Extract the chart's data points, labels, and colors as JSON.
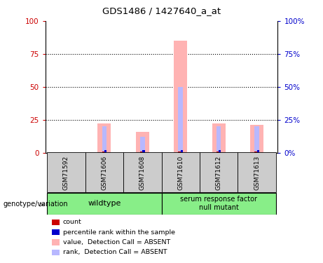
{
  "title": "GDS1486 / 1427640_a_at",
  "samples": [
    "GSM71592",
    "GSM71606",
    "GSM71608",
    "GSM71610",
    "GSM71612",
    "GSM71613"
  ],
  "value_absent": [
    0,
    22,
    16,
    85,
    22,
    21
  ],
  "rank_absent": [
    0,
    20,
    12,
    50,
    20,
    20
  ],
  "count_val": [
    0,
    1,
    1,
    1,
    1,
    1
  ],
  "percentile_val": [
    0,
    2,
    2,
    2,
    2,
    2
  ],
  "ylim": [
    0,
    100
  ],
  "yticks": [
    0,
    25,
    50,
    75,
    100
  ],
  "color_value_absent": "#ffb3b3",
  "color_rank_absent": "#b8b8ff",
  "color_count": "#cc0000",
  "color_percentile": "#0000cc",
  "bar_width": 0.35,
  "rank_bar_width": 0.12,
  "count_bar_width": 0.06,
  "wildtype_label": "wildtype",
  "mutant_label": "serum response factor\nnull mutant",
  "group_color": "#88ee88",
  "sample_box_color": "#cccccc",
  "tick_label_color_left": "#cc0000",
  "tick_label_color_right": "#0000cc",
  "legend_items": [
    {
      "label": "count",
      "color": "#cc0000"
    },
    {
      "label": "percentile rank within the sample",
      "color": "#0000cc"
    },
    {
      "label": "value,  Detection Call = ABSENT",
      "color": "#ffb3b3"
    },
    {
      "label": "rank,  Detection Call = ABSENT",
      "color": "#b8b8ff"
    }
  ],
  "dotted_line_color": "#000000"
}
